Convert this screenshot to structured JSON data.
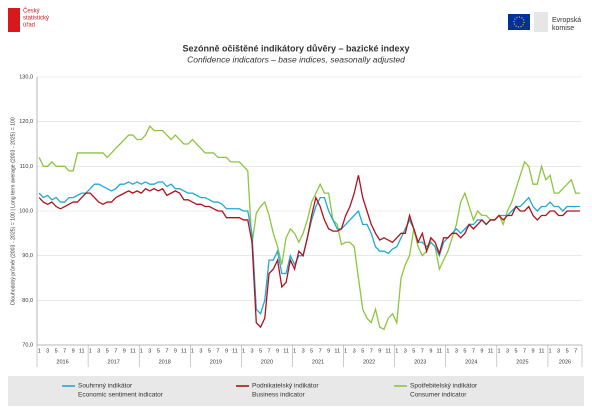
{
  "header": {
    "left_logo": [
      "Český",
      "statistický",
      "úřad"
    ],
    "right_logo": [
      "Evropská",
      "komise"
    ]
  },
  "chart_data": {
    "type": "line",
    "title": "Sezónně očištěné indikátory důvěry – bazické indexy",
    "subtitle": "Confidence indicators – base indices, seasonally adjusted",
    "y_label": "Dlouhodobý průměr (2003 - 2025) = 100 | Long term average (2003 - 2025) = 100",
    "categories": [
      "1",
      null,
      "3",
      null,
      "5",
      null,
      "7",
      null,
      "9",
      null,
      "11",
      null,
      "1",
      null,
      "3",
      null,
      "5",
      null,
      "7",
      null,
      "9",
      null,
      "11",
      null,
      "1",
      null,
      "3",
      null,
      "5",
      null,
      "7",
      null,
      "9",
      null,
      "11",
      null,
      "1",
      null,
      "3",
      null,
      "5",
      null,
      "7",
      null,
      "9",
      null,
      "11",
      null,
      "1",
      null,
      "3",
      null,
      "5",
      null,
      "7",
      null,
      "9",
      null,
      "11",
      null,
      "1",
      null,
      "3",
      null,
      "5",
      null,
      "7",
      null,
      "9",
      null,
      "11",
      null,
      "1",
      null,
      "3",
      null,
      "5",
      null,
      "7",
      null,
      "9",
      null,
      "11",
      null,
      "1",
      null,
      "3",
      null,
      "5",
      null,
      "7",
      null,
      "9",
      null,
      "11",
      null,
      "1",
      null,
      "3",
      null,
      "5",
      null,
      "7",
      null,
      "9",
      null,
      "11",
      null,
      "1",
      null,
      "3",
      null,
      "5",
      null,
      "7",
      null,
      "9",
      null,
      "11",
      null,
      "1",
      null,
      "3",
      null,
      "5",
      null,
      "7",
      null
    ],
    "years": [
      "2016",
      "2017",
      "2018",
      "2019",
      "2020",
      "2021",
      "2022",
      "2023",
      "2024",
      "2025",
      "2026"
    ],
    "ylim": [
      70,
      130
    ],
    "yticks": [
      {
        "value": 70,
        "label": "70,0"
      },
      {
        "value": 80,
        "label": "80,0"
      },
      {
        "value": 90,
        "label": "90,0"
      },
      {
        "value": 100,
        "label": "100,0"
      },
      {
        "value": 110,
        "label": "110,0"
      },
      {
        "value": 120,
        "label": "120,0"
      },
      {
        "value": 130,
        "label": "130,0"
      }
    ],
    "grid": true,
    "legend": "bottom",
    "series": [
      {
        "name": "Souhrnný indikátor",
        "name_en": "Economic sentiment indicator",
        "color": "#1fa8d8",
        "values": [
          104,
          103,
          103.5,
          102.5,
          103,
          102,
          102,
          103,
          103,
          103.5,
          104,
          104,
          105,
          106,
          106,
          105.5,
          105,
          104.5,
          105,
          106,
          106,
          106.5,
          106,
          106.5,
          106,
          106.5,
          106,
          106,
          106.5,
          106.5,
          105.5,
          106,
          105,
          105,
          104.5,
          104,
          104,
          103.5,
          103,
          103,
          102.5,
          102,
          102,
          101.5,
          100.5,
          100.5,
          100.5,
          100.5,
          100,
          100,
          95,
          78,
          77,
          80,
          89,
          89,
          91,
          86,
          86,
          90,
          88,
          90,
          90,
          94,
          98,
          101,
          103,
          103,
          100,
          98,
          96,
          96,
          97,
          98,
          99,
          100,
          97,
          97,
          95,
          92,
          91,
          91,
          90.5,
          91.5,
          92,
          94,
          96,
          98,
          96,
          93,
          93,
          92,
          93,
          92,
          90,
          93,
          94,
          95,
          96,
          95,
          96,
          97,
          97,
          98,
          98,
          97,
          98,
          98,
          99,
          99,
          99,
          100,
          101,
          101,
          102,
          103,
          101,
          100,
          101,
          101,
          102,
          101,
          101,
          100,
          101,
          101,
          101,
          101
        ]
      },
      {
        "name": "Podnikatelský indikátor",
        "name_en": "Business indicator",
        "color": "#b0121b",
        "values": [
          103,
          102,
          101.5,
          102,
          101,
          100.5,
          101,
          101.5,
          102,
          102,
          103,
          104,
          104,
          103,
          102,
          101.5,
          102,
          102,
          103,
          103.5,
          104,
          104.5,
          104,
          104.5,
          104,
          105,
          104.5,
          105,
          104.5,
          105,
          103.5,
          104,
          104.5,
          104,
          102.5,
          102.5,
          102,
          101.5,
          101.5,
          101,
          101,
          100.5,
          100,
          100,
          98.5,
          98.5,
          98.5,
          98.5,
          98,
          98,
          93,
          75,
          74,
          76,
          86,
          87,
          89,
          83,
          84,
          89,
          87,
          91,
          90,
          94,
          99,
          103,
          101,
          98,
          96,
          95.5,
          95.5,
          96,
          99,
          101,
          104,
          108,
          103,
          100,
          97,
          95,
          93.5,
          94,
          93.5,
          93,
          94,
          95,
          95,
          99,
          96,
          93,
          95,
          91,
          94,
          93,
          90.5,
          94,
          94,
          95,
          95,
          94,
          95,
          97,
          96,
          97,
          98,
          97,
          98,
          98,
          99,
          98,
          99,
          99,
          101,
          100,
          100,
          101,
          99,
          98,
          99,
          99,
          100,
          100,
          99,
          99,
          100,
          100,
          100,
          100
        ]
      },
      {
        "name": "Spotřebitelský indikátor",
        "name_en": "Consumer indicator",
        "color": "#8cc63f",
        "values": [
          112,
          110,
          110,
          111,
          110,
          110,
          110,
          109,
          109,
          113,
          113,
          113,
          113,
          113,
          113,
          113,
          112,
          113,
          114,
          115,
          116,
          117,
          117,
          116,
          116,
          117,
          119,
          118,
          118,
          118,
          117,
          116,
          117,
          116,
          115,
          115,
          116,
          115,
          114,
          113,
          113,
          113,
          112,
          112,
          112,
          111,
          111,
          111,
          110,
          109,
          92.5,
          99.5,
          101,
          102,
          99,
          95,
          92,
          88,
          94,
          96,
          95,
          93,
          95,
          98,
          102,
          104,
          106,
          104,
          104,
          98,
          97,
          92.5,
          93,
          93,
          92,
          85,
          78,
          76,
          75,
          78,
          74,
          73.5,
          76,
          77,
          75,
          85,
          88,
          90,
          96,
          92,
          90,
          91,
          93,
          92,
          87,
          89,
          91,
          94,
          97,
          102,
          104,
          101,
          98,
          100,
          99,
          99,
          98,
          98,
          99,
          97,
          100,
          102,
          105,
          108,
          111,
          110,
          106,
          106,
          110,
          107,
          108,
          104,
          104,
          105,
          106,
          107,
          104,
          104
        ]
      }
    ]
  }
}
